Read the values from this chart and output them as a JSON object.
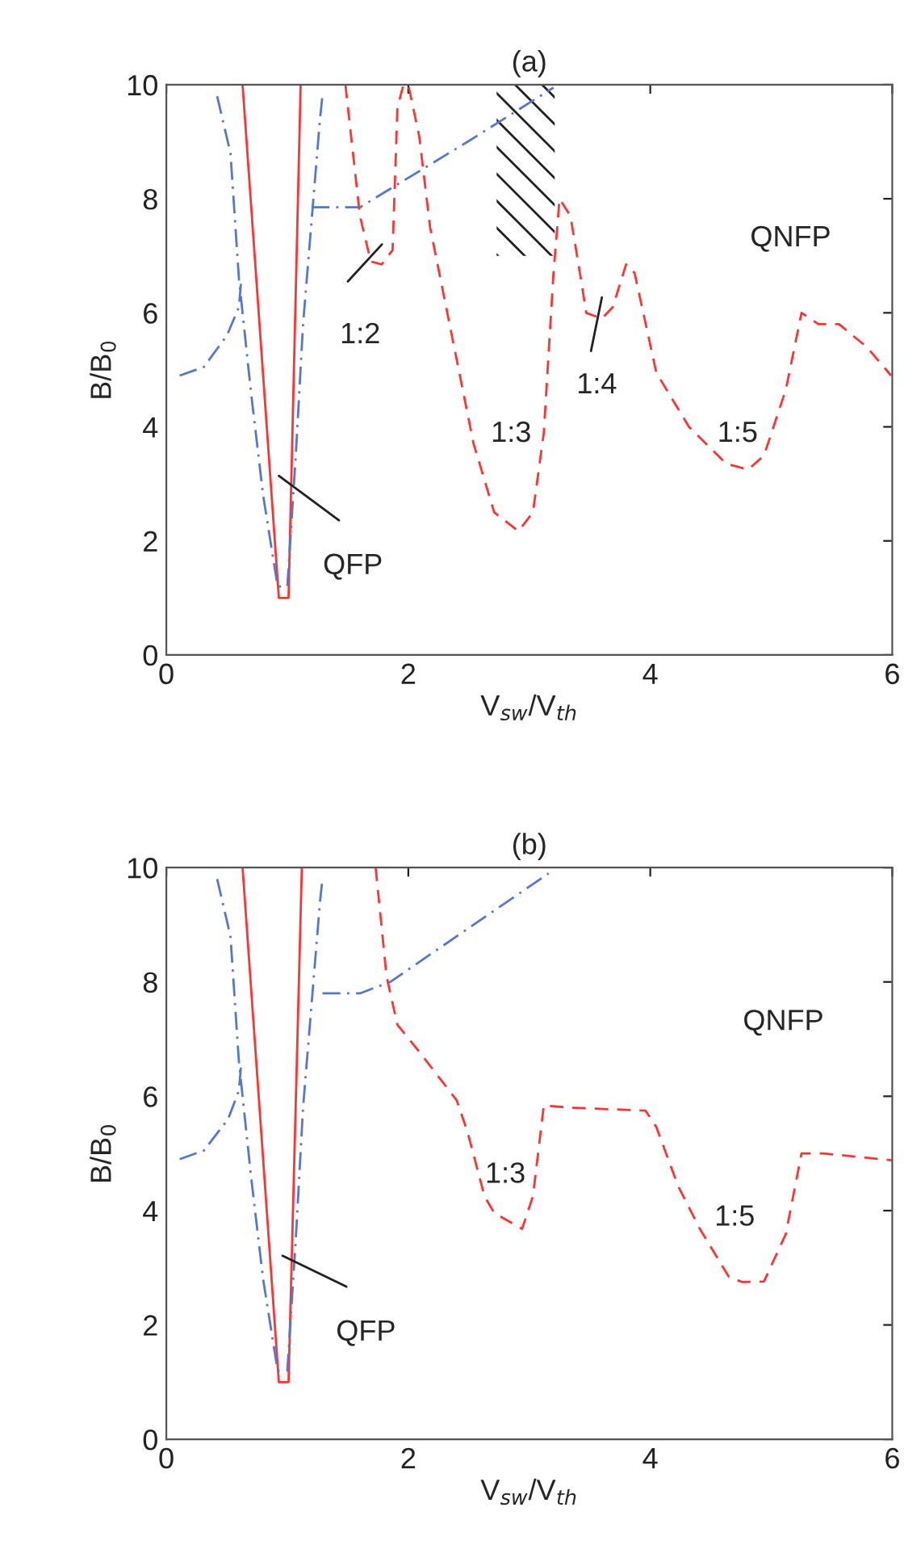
{
  "chart_data": [
    {
      "type": "line",
      "title": "(a)",
      "xlabel": "V$_{sw}$/V$_{th}$",
      "ylabel": "B/B$_{0}$",
      "xlim": [
        0,
        6
      ],
      "ylim": [
        0,
        10
      ],
      "xticks": [
        0,
        2,
        4,
        6
      ],
      "yticks": [
        0,
        2,
        4,
        6,
        8,
        10
      ],
      "grid": false,
      "legend": false,
      "series": [
        {
          "color": "#ff3333",
          "line_style": "solid",
          "x": [
            0.63,
            0.93,
            1.01,
            1.11
          ],
          "values": [
            10,
            1,
            1,
            10
          ]
        },
        {
          "color": "#5577cc",
          "line_style": "dashdot",
          "x": [
            0.11,
            0.31,
            0.5,
            0.6,
            0.62
          ],
          "values": [
            4.9,
            5.05,
            5.6,
            6.1,
            6.6
          ]
        },
        {
          "color": "#5577cc",
          "line_style": "dashdot",
          "x": [
            0.42,
            0.53,
            0.6,
            0.7,
            0.8,
            0.92,
            1.0,
            1.07,
            1.13,
            1.2,
            1.27,
            1.29
          ],
          "values": [
            9.8,
            8.8,
            6.6,
            4.6,
            2.8,
            1.2,
            1.2,
            3.5,
            5.8,
            7.6,
            9.4,
            9.8
          ]
        },
        {
          "color": "#5577cc",
          "line_style": "dashdot",
          "x": [
            1.2,
            1.6,
            1.87,
            2.49,
            3.2
          ],
          "values": [
            7.85,
            7.85,
            8.2,
            9.0,
            9.95
          ]
        },
        {
          "color": "#ff3333",
          "line_style": "dashed",
          "x": [
            1.48,
            1.6,
            1.69,
            1.78,
            1.87,
            1.91,
            1.96,
            2.0,
            2.09,
            2.18,
            2.36,
            2.54,
            2.71,
            2.91,
            3.03,
            3.12,
            3.2,
            3.25,
            3.34,
            3.43,
            3.47,
            3.6,
            3.69,
            3.8,
            3.87,
            4.05,
            4.32,
            4.63,
            4.81,
            4.94,
            5.12,
            5.25,
            5.39,
            5.56,
            5.79,
            5.99
          ],
          "values": [
            10,
            7.7,
            6.9,
            6.85,
            7.1,
            9.6,
            10,
            10,
            9.1,
            7.5,
            5.6,
            3.7,
            2.5,
            2.17,
            2.5,
            3.9,
            6.7,
            8.0,
            7.7,
            6.55,
            6.0,
            5.9,
            6.1,
            6.85,
            6.7,
            4.95,
            4.0,
            3.35,
            3.25,
            3.5,
            4.65,
            6.0,
            5.8,
            5.8,
            5.4,
            4.9
          ]
        }
      ],
      "annotations": [
        "QNFP",
        "1:2",
        "QFP",
        "1:3",
        "1:4",
        "1:5"
      ]
    },
    {
      "type": "line",
      "title": "(b)",
      "xlabel": "V$_{sw}$/V$_{th}$",
      "ylabel": "B/B$_{0}$",
      "xlim": [
        0,
        6
      ],
      "ylim": [
        0,
        10
      ],
      "xticks": [
        0,
        2,
        4,
        6
      ],
      "yticks": [
        0,
        2,
        4,
        6,
        8,
        10
      ],
      "grid": false,
      "legend": false,
      "series": [
        {
          "color": "#ff3333",
          "line_style": "solid",
          "x": [
            0.63,
            0.93,
            1.01,
            1.12
          ],
          "values": [
            10,
            1,
            1,
            10
          ]
        },
        {
          "color": "#5577cc",
          "line_style": "dashdot",
          "x": [
            0.11,
            0.31,
            0.51,
            0.6,
            0.62
          ],
          "values": [
            4.9,
            5.05,
            5.6,
            6.1,
            6.6
          ]
        },
        {
          "color": "#5577cc",
          "line_style": "dashdot",
          "x": [
            0.42,
            0.53,
            0.6,
            0.7,
            0.8,
            0.92,
            1.0,
            1.07,
            1.13,
            1.2,
            1.27,
            1.29
          ],
          "values": [
            9.8,
            8.8,
            6.6,
            4.6,
            2.8,
            1.2,
            1.2,
            3.5,
            5.8,
            7.6,
            9.4,
            9.8
          ]
        },
        {
          "color": "#5577cc",
          "line_style": "dashdot",
          "x": [
            1.29,
            1.42,
            1.6,
            1.85,
            3.16
          ],
          "values": [
            7.8,
            7.8,
            7.8,
            8.0,
            9.9
          ]
        },
        {
          "color": "#ff3333",
          "line_style": "dashed",
          "x": [
            1.73,
            1.82,
            1.91,
            2.09,
            2.4,
            2.49,
            2.63,
            2.71,
            2.94,
            3.03,
            3.12,
            3.34,
            3.96,
            4.05,
            4.23,
            4.41,
            4.65,
            4.76,
            4.94,
            5.12,
            5.25,
            5.43,
            6.0
          ],
          "values": [
            10,
            8.1,
            7.25,
            6.78,
            5.93,
            5.37,
            4.25,
            3.96,
            3.68,
            4.25,
            5.84,
            5.8,
            5.75,
            5.46,
            4.43,
            3.68,
            2.84,
            2.75,
            2.76,
            3.59,
            5.0,
            5.0,
            4.88
          ]
        }
      ],
      "annotations": [
        "QNFP",
        "1:3",
        "1:5",
        "QFP"
      ]
    }
  ]
}
